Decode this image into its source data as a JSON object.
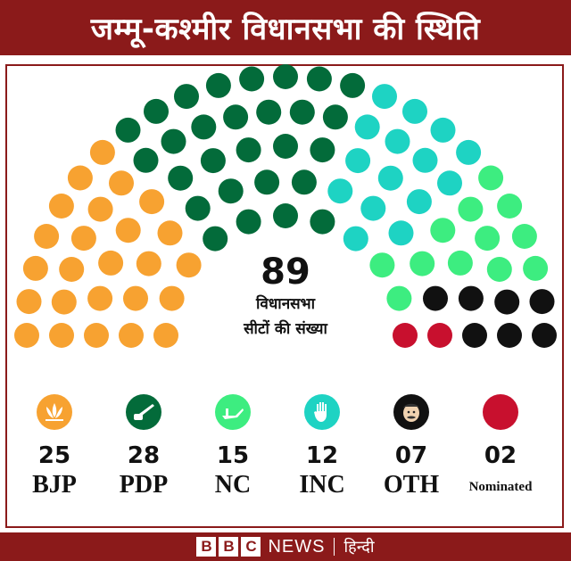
{
  "title": "जम्मू-कश्मीर विधानसभा की स्थिति",
  "center": {
    "total": "89",
    "label_line1": "विधानसभा",
    "label_line2": "सीटों की संख्या"
  },
  "chart_data": {
    "type": "parliament",
    "total_seats": 89,
    "series": [
      {
        "name": "BJP",
        "value": 25,
        "color": "#f7a231"
      },
      {
        "name": "PDP",
        "value": 28,
        "color": "#036b3a"
      },
      {
        "name": "NC",
        "value": 15,
        "color": "#1ed3c3"
      },
      {
        "name": "INC",
        "value": 12,
        "color": "#3ded80"
      },
      {
        "name": "OTH",
        "value": 7,
        "color": "#111111"
      },
      {
        "name": "Nominated",
        "value": 2,
        "color": "#c8102e"
      }
    ]
  },
  "legend": [
    {
      "count": "25",
      "name": "BJP",
      "icon": "lotus-icon",
      "color": "#f7a231"
    },
    {
      "count": "28",
      "name": "PDP",
      "icon": "pen-inkpot-icon",
      "color": "#036b3a"
    },
    {
      "count": "15",
      "name": "NC",
      "icon": "plough-icon",
      "color": "#3ded80"
    },
    {
      "count": "12",
      "name": "INC",
      "icon": "hand-icon",
      "color": "#1ed3c3"
    },
    {
      "count": "07",
      "name": "OTH",
      "icon": "face-icon",
      "color": "#111111"
    },
    {
      "count": "02",
      "name": "Nominated",
      "icon": "dot-icon",
      "color": "#c8102e"
    }
  ],
  "footer": {
    "bbc_letters": [
      "B",
      "B",
      "C"
    ],
    "news": "NEWS",
    "hindi": "हिन्दी"
  }
}
